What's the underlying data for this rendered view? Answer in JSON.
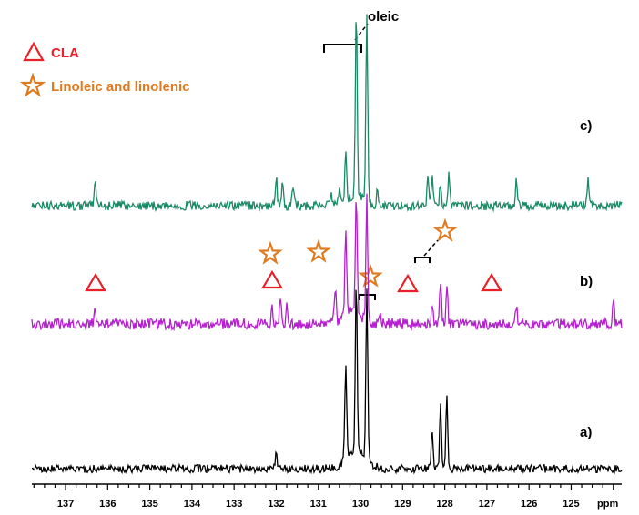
{
  "legend": {
    "items": [
      {
        "symbol": "triangle",
        "label": "CLA",
        "color": "#e8202a"
      },
      {
        "symbol": "star",
        "label": "Linoleic and linolenic",
        "color": "#e07a1f"
      }
    ]
  },
  "annotations": {
    "oleic": "oleic"
  },
  "chart_data": {
    "type": "line",
    "title": "",
    "xlabel": "ppm",
    "ylabel": "",
    "xlim": [
      137.8,
      123.8
    ],
    "x_reversed": true,
    "x_ticks": [
      137,
      136,
      135,
      134,
      133,
      132,
      131,
      130,
      129,
      128,
      127,
      126,
      125
    ],
    "grid": false,
    "series": [
      {
        "name": "c)",
        "color": "#1a8a63",
        "peaks": [
          {
            "ppm": 136.3,
            "height": 30
          },
          {
            "ppm": 132.0,
            "height": 32
          },
          {
            "ppm": 131.85,
            "height": 24
          },
          {
            "ppm": 131.6,
            "height": 18
          },
          {
            "ppm": 130.7,
            "height": 14
          },
          {
            "ppm": 130.5,
            "height": 18
          },
          {
            "ppm": 130.35,
            "height": 50
          },
          {
            "ppm": 130.1,
            "height": 205
          },
          {
            "ppm": 129.85,
            "height": 205
          },
          {
            "ppm": 129.6,
            "height": 18
          },
          {
            "ppm": 128.4,
            "height": 34
          },
          {
            "ppm": 128.3,
            "height": 30
          },
          {
            "ppm": 128.1,
            "height": 24
          },
          {
            "ppm": 127.9,
            "height": 34
          },
          {
            "ppm": 126.3,
            "height": 32
          },
          {
            "ppm": 124.6,
            "height": 30
          }
        ]
      },
      {
        "name": "b)",
        "color": "#b51fd0",
        "peaks": [
          {
            "ppm": 136.3,
            "height": 16
          },
          {
            "ppm": 132.1,
            "height": 20
          },
          {
            "ppm": 131.9,
            "height": 24
          },
          {
            "ppm": 131.75,
            "height": 20
          },
          {
            "ppm": 130.6,
            "height": 38
          },
          {
            "ppm": 130.35,
            "height": 90
          },
          {
            "ppm": 130.1,
            "height": 135
          },
          {
            "ppm": 129.85,
            "height": 135
          },
          {
            "ppm": 129.55,
            "height": 14
          },
          {
            "ppm": 128.3,
            "height": 22
          },
          {
            "ppm": 128.1,
            "height": 46
          },
          {
            "ppm": 127.95,
            "height": 46
          },
          {
            "ppm": 126.3,
            "height": 18
          },
          {
            "ppm": 124.0,
            "height": 28
          }
        ]
      },
      {
        "name": "a)",
        "color": "#000000",
        "peaks": [
          {
            "ppm": 132.0,
            "height": 22
          },
          {
            "ppm": 130.35,
            "height": 105
          },
          {
            "ppm": 130.1,
            "height": 188
          },
          {
            "ppm": 129.85,
            "height": 188
          },
          {
            "ppm": 128.3,
            "height": 40
          },
          {
            "ppm": 128.1,
            "height": 72
          },
          {
            "ppm": 127.95,
            "height": 80
          }
        ]
      }
    ]
  }
}
